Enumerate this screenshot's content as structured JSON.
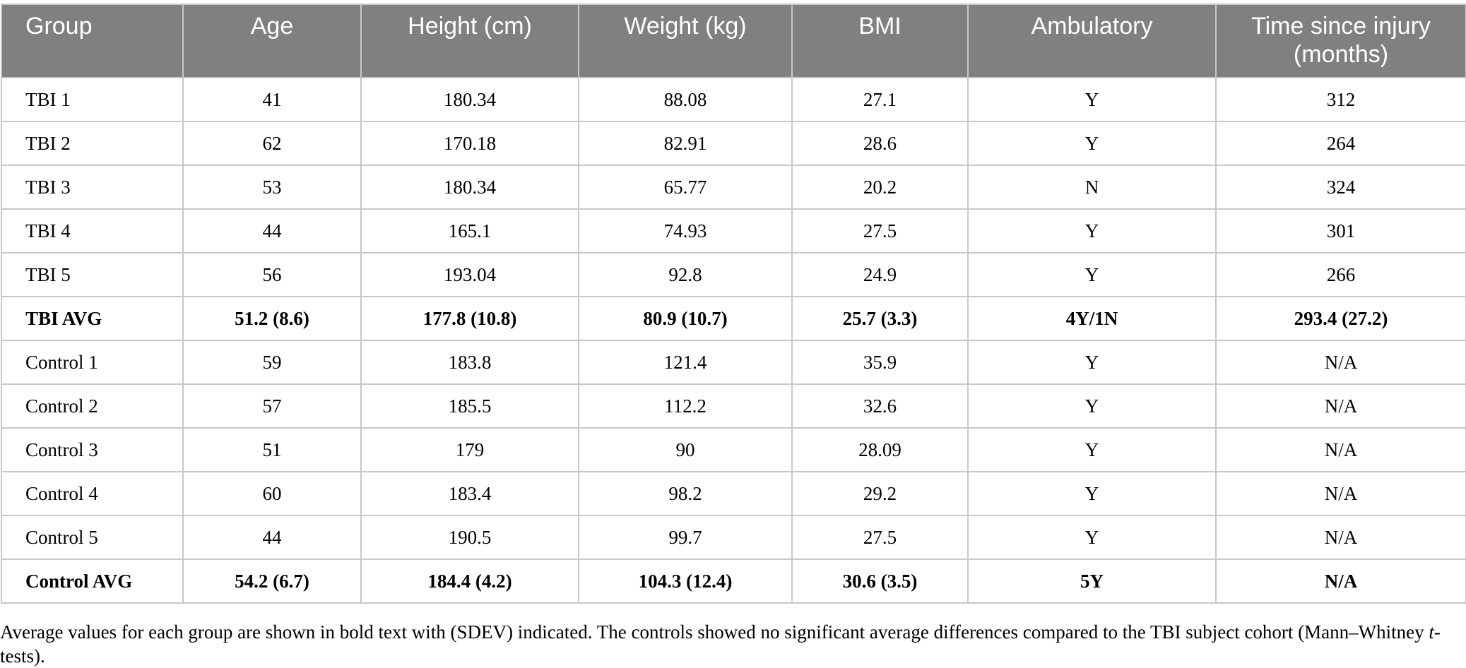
{
  "table": {
    "headers": [
      "Group",
      "Age",
      "Height (cm)",
      "Weight (kg)",
      "BMI",
      "Ambulatory",
      "Time since injury (months)"
    ],
    "rows": [
      {
        "group": "TBI 1",
        "age": "41",
        "height": "180.34",
        "weight": "88.08",
        "bmi": "27.1",
        "ambulatory": "Y",
        "time": "312",
        "bold": false
      },
      {
        "group": "TBI 2",
        "age": "62",
        "height": "170.18",
        "weight": "82.91",
        "bmi": "28.6",
        "ambulatory": "Y",
        "time": "264",
        "bold": false
      },
      {
        "group": "TBI 3",
        "age": "53",
        "height": "180.34",
        "weight": "65.77",
        "bmi": "20.2",
        "ambulatory": "N",
        "time": "324",
        "bold": false
      },
      {
        "group": "TBI 4",
        "age": "44",
        "height": "165.1",
        "weight": "74.93",
        "bmi": "27.5",
        "ambulatory": "Y",
        "time": "301",
        "bold": false
      },
      {
        "group": "TBI 5",
        "age": "56",
        "height": "193.04",
        "weight": "92.8",
        "bmi": "24.9",
        "ambulatory": "Y",
        "time": "266",
        "bold": false
      },
      {
        "group": "TBI AVG",
        "age": "51.2 (8.6)",
        "height": "177.8 (10.8)",
        "weight": "80.9 (10.7)",
        "bmi": "25.7 (3.3)",
        "ambulatory": "4Y/1N",
        "time": "293.4 (27.2)",
        "bold": true
      },
      {
        "group": "Control 1",
        "age": "59",
        "height": "183.8",
        "weight": "121.4",
        "bmi": "35.9",
        "ambulatory": "Y",
        "time": "N/A",
        "bold": false
      },
      {
        "group": "Control 2",
        "age": "57",
        "height": "185.5",
        "weight": "112.2",
        "bmi": "32.6",
        "ambulatory": "Y",
        "time": "N/A",
        "bold": false
      },
      {
        "group": "Control 3",
        "age": "51",
        "height": "179",
        "weight": "90",
        "bmi": "28.09",
        "ambulatory": "Y",
        "time": "N/A",
        "bold": false
      },
      {
        "group": "Control 4",
        "age": "60",
        "height": "183.4",
        "weight": "98.2",
        "bmi": "29.2",
        "ambulatory": "Y",
        "time": "N/A",
        "bold": false
      },
      {
        "group": "Control 5",
        "age": "44",
        "height": "190.5",
        "weight": "99.7",
        "bmi": "27.5",
        "ambulatory": "Y",
        "time": "N/A",
        "bold": false
      },
      {
        "group": "Control AVG",
        "age": "54.2 (6.7)",
        "height": "184.4 (4.2)",
        "weight": "104.3 (12.4)",
        "bmi": "30.6 (3.5)",
        "ambulatory": "5Y",
        "time": "N/A",
        "bold": true
      }
    ]
  },
  "caption": {
    "text_before": "Average values for each group are shown in bold text with (SDEV) indicated. The controls showed no significant average differences compared to the TBI subject cohort (Mann–Whitney ",
    "italic": "t",
    "text_after": "-tests)."
  },
  "colors": {
    "header_bg": "#808080",
    "header_text": "#ffffff",
    "border": "#c8c8c8"
  }
}
